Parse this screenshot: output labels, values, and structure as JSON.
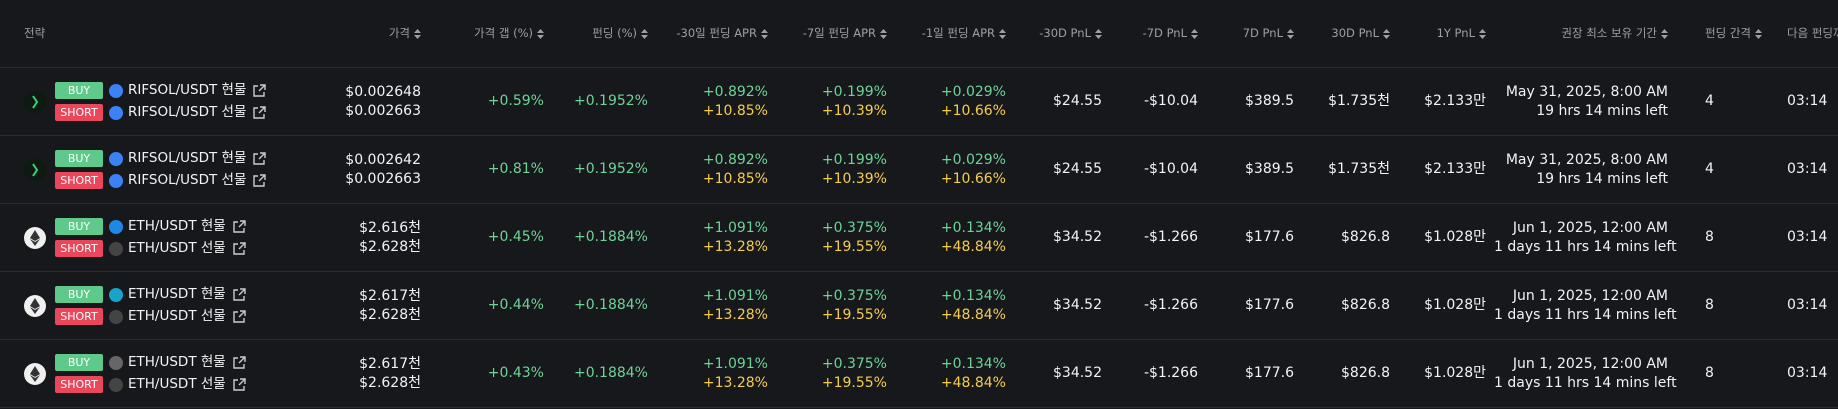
{
  "table": {
    "headers": [
      "전략",
      "가격",
      "가격 갭 (%)",
      "펀딩 (%)",
      "-30일 펀딩 APR",
      "-7일 펀딩 APR",
      "-1일 펀딩 APR",
      "-30D PnL",
      "-7D PnL",
      "7D PnL",
      "30D PnL",
      "1Y PnL",
      "권장 최소 보유 기간",
      "펀딩 간격",
      "다음 펀딩까"
    ],
    "rows": [
      {
        "buy": "BUY",
        "buy_pair": "RIFSOL/USDT 현물",
        "short": "SHORT",
        "short_pair": "RIFSOL/USDT 선물",
        "price": [
          "$0.002648",
          "$0.002663"
        ],
        "gap": "+0.59%",
        "funding": "+0.1952%",
        "apr30": [
          "+0.892%",
          "+10.85%"
        ],
        "apr7": [
          "+0.199%",
          "+10.39%"
        ],
        "apr1": [
          "+0.029%",
          "+10.66%"
        ],
        "pnl30m": "$24.55",
        "pnl7m": "-$10.04",
        "pnl7": "$389.5",
        "pnl30": "$1.735천",
        "pnl1y": "$2.133만",
        "hold": [
          "May 31, 2025, 8:00 AM",
          "19 hrs 14 mins left"
        ],
        "interval": "4",
        "next": "03:14"
      },
      {
        "buy": "BUY",
        "buy_pair": "RIFSOL/USDT 현물",
        "short": "SHORT",
        "short_pair": "RIFSOL/USDT 선물",
        "price": [
          "$0.002642",
          "$0.002663"
        ],
        "gap": "+0.81%",
        "funding": "+0.1952%",
        "apr30": [
          "+0.892%",
          "+10.85%"
        ],
        "apr7": [
          "+0.199%",
          "+10.39%"
        ],
        "apr1": [
          "+0.029%",
          "+10.66%"
        ],
        "pnl30m": "$24.55",
        "pnl7m": "-$10.04",
        "pnl7": "$389.5",
        "pnl30": "$1.735천",
        "pnl1y": "$2.133만",
        "hold": [
          "May 31, 2025, 8:00 AM",
          "19 hrs 14 mins left"
        ],
        "interval": "4",
        "next": "03:14"
      },
      {
        "buy": "BUY",
        "buy_pair": "ETH/USDT 현물",
        "short": "SHORT",
        "short_pair": "ETH/USDT 선물",
        "price": [
          "$2.616천",
          "$2.628천"
        ],
        "gap": "+0.45%",
        "funding": "+0.1884%",
        "apr30": [
          "+1.091%",
          "+13.28%"
        ],
        "apr7": [
          "+0.375%",
          "+19.55%"
        ],
        "apr1": [
          "+0.134%",
          "+48.84%"
        ],
        "pnl30m": "$34.52",
        "pnl7m": "-$1.266",
        "pnl7": "$177.6",
        "pnl30": "$826.8",
        "pnl1y": "$1.028만",
        "hold": [
          "Jun 1, 2025, 12:00 AM",
          "1 days 11 hrs 14 mins left"
        ],
        "interval": "8",
        "next": "03:14"
      },
      {
        "buy": "BUY",
        "buy_pair": "ETH/USDT 현물",
        "short": "SHORT",
        "short_pair": "ETH/USDT 선물",
        "price": [
          "$2.617천",
          "$2.628천"
        ],
        "gap": "+0.44%",
        "funding": "+0.1884%",
        "apr30": [
          "+1.091%",
          "+13.28%"
        ],
        "apr7": [
          "+0.375%",
          "+19.55%"
        ],
        "apr1": [
          "+0.134%",
          "+48.84%"
        ],
        "pnl30m": "$34.52",
        "pnl7m": "-$1.266",
        "pnl7": "$177.6",
        "pnl30": "$826.8",
        "pnl1y": "$1.028만",
        "hold": [
          "Jun 1, 2025, 12:00 AM",
          "1 days 11 hrs 14 mins left"
        ],
        "interval": "8",
        "next": "03:14"
      },
      {
        "buy": "BUY",
        "buy_pair": "ETH/USDT 현물",
        "short": "SHORT",
        "short_pair": "ETH/USDT 선물",
        "price": [
          "$2.617천",
          "$2.628천"
        ],
        "gap": "+0.43%",
        "funding": "+0.1884%",
        "apr30": [
          "+1.091%",
          "+13.28%"
        ],
        "apr7": [
          "+0.375%",
          "+19.55%"
        ],
        "apr1": [
          "+0.134%",
          "+48.84%"
        ],
        "pnl30m": "$34.52",
        "pnl7m": "-$1.266",
        "pnl7": "$177.6",
        "pnl30": "$826.8",
        "pnl1y": "$1.028만",
        "hold": [
          "Jun 1, 2025, 12:00 AM",
          "1 days 11 hrs 14 mins left"
        ],
        "interval": "8",
        "next": "03:14"
      }
    ]
  }
}
